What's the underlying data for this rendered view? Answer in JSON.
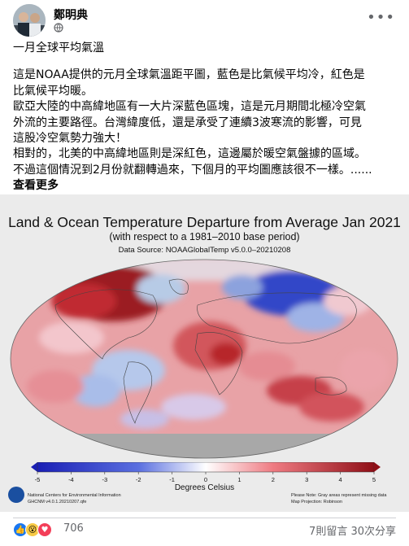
{
  "post": {
    "author": "鄭明典",
    "meta_icon": "globe-icon",
    "menu_icon": "more-dots-icon",
    "title_line": "一月全球平均氣溫",
    "paragraphs": [
      "這是NOAA提供的元月全球氣溫距平圖，藍色是比氣候平均冷，紅色是",
      "比氣候平均暖。",
      "歐亞大陸的中高緯地區有一大片深藍色區塊，這是元月期間北極冷空氣",
      "外流的主要路徑。台灣緯度低，還是承受了連續3波寒流的影響，可見",
      "這股冷空氣勢力強大！",
      "相對的，北美的中高緯地區則是深紅色，這邊屬於暖空氣盤據的區域。",
      "不過這個情況到2月份就翻轉過來，下個月的平均圖應該很不一樣。......"
    ],
    "see_more": "查看更多"
  },
  "figure": {
    "title": "Land & Ocean Temperature Departure from Average Jan 2021",
    "subtitle": "(with respect to a 1981–2010 base period)",
    "source": "Data Source: NOAAGlobalTemp v5.0.0–20210208",
    "colorbar_ticks": [
      "-5",
      "-4",
      "-3",
      "-2",
      "-1",
      "0",
      "1",
      "2",
      "3",
      "4",
      "5"
    ],
    "colorbar_label": "Degrees Celsius",
    "footnote_left_1": "National Centers for Environmental Information",
    "footnote_left_2": "GHCNM v4.0.1.20210207.qfe",
    "footnote_right_1": "Please Note: Gray areas represent missing data",
    "footnote_right_2": "Map Projection: Robinson",
    "colors": {
      "cold": "#2233cc",
      "warm": "#b0101a",
      "missing": "#a8a8a8"
    }
  },
  "footer": {
    "reaction_icons": [
      "like-icon",
      "wow-icon",
      "love-icon"
    ],
    "reaction_count": "706",
    "comments_shares": "7則留言   30次分享"
  }
}
